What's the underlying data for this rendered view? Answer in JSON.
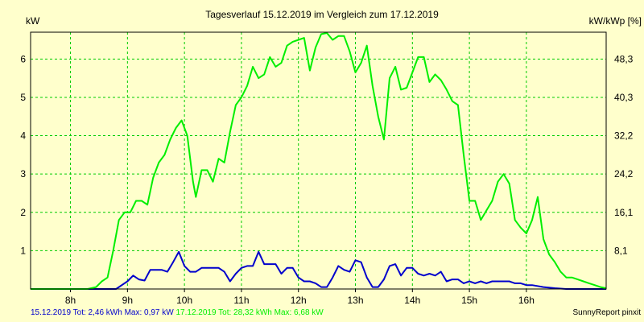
{
  "chart_data": {
    "type": "line",
    "title": "Tagesverlauf 15.12.2019 im Vergleich zum 17.12.2019",
    "ylabel_left": "kW",
    "ylabel_right": "kW/kWp [%]",
    "x_ticks": [
      "8h",
      "9h",
      "10h",
      "11h",
      "12h",
      "13h",
      "14h",
      "15h",
      "16h"
    ],
    "y_ticks_left": [
      "1",
      "2",
      "3",
      "4",
      "5",
      "6"
    ],
    "y_ticks_right": [
      "8,1",
      "16,1",
      "24,2",
      "32,2",
      "40,3",
      "48,3"
    ],
    "xlim": [
      7.3,
      17.4
    ],
    "ylim": [
      0,
      6.7
    ],
    "grid": true,
    "grid_color": "#00CC00",
    "background": "#FFFFCC",
    "series": [
      {
        "name": "15.12.2019",
        "color": "#0000CC",
        "points": [
          [
            7.3,
            0
          ],
          [
            8.4,
            0
          ],
          [
            8.8,
            0
          ],
          [
            8.9,
            0.1
          ],
          [
            9.0,
            0.2
          ],
          [
            9.1,
            0.35
          ],
          [
            9.2,
            0.25
          ],
          [
            9.3,
            0.22
          ],
          [
            9.4,
            0.5
          ],
          [
            9.5,
            0.5
          ],
          [
            9.6,
            0.5
          ],
          [
            9.7,
            0.45
          ],
          [
            9.8,
            0.7
          ],
          [
            9.9,
            0.97
          ],
          [
            10.0,
            0.6
          ],
          [
            10.1,
            0.45
          ],
          [
            10.2,
            0.45
          ],
          [
            10.3,
            0.55
          ],
          [
            10.4,
            0.55
          ],
          [
            10.5,
            0.55
          ],
          [
            10.6,
            0.55
          ],
          [
            10.7,
            0.45
          ],
          [
            10.8,
            0.2
          ],
          [
            10.9,
            0.4
          ],
          [
            11.0,
            0.55
          ],
          [
            11.1,
            0.6
          ],
          [
            11.2,
            0.6
          ],
          [
            11.3,
            0.97
          ],
          [
            11.4,
            0.65
          ],
          [
            11.5,
            0.65
          ],
          [
            11.6,
            0.65
          ],
          [
            11.7,
            0.4
          ],
          [
            11.8,
            0.55
          ],
          [
            11.9,
            0.55
          ],
          [
            12.0,
            0.3
          ],
          [
            12.1,
            0.2
          ],
          [
            12.2,
            0.2
          ],
          [
            12.3,
            0.15
          ],
          [
            12.4,
            0.05
          ],
          [
            12.5,
            0.05
          ],
          [
            12.6,
            0.3
          ],
          [
            12.7,
            0.6
          ],
          [
            12.8,
            0.5
          ],
          [
            12.9,
            0.45
          ],
          [
            13.0,
            0.75
          ],
          [
            13.1,
            0.7
          ],
          [
            13.2,
            0.3
          ],
          [
            13.3,
            0.05
          ],
          [
            13.4,
            0.05
          ],
          [
            13.5,
            0.25
          ],
          [
            13.6,
            0.6
          ],
          [
            13.7,
            0.65
          ],
          [
            13.8,
            0.35
          ],
          [
            13.9,
            0.55
          ],
          [
            14.0,
            0.55
          ],
          [
            14.1,
            0.4
          ],
          [
            14.2,
            0.35
          ],
          [
            14.3,
            0.4
          ],
          [
            14.4,
            0.35
          ],
          [
            14.5,
            0.45
          ],
          [
            14.6,
            0.2
          ],
          [
            14.7,
            0.25
          ],
          [
            14.8,
            0.25
          ],
          [
            14.9,
            0.15
          ],
          [
            15.0,
            0.2
          ],
          [
            15.1,
            0.15
          ],
          [
            15.2,
            0.2
          ],
          [
            15.3,
            0.15
          ],
          [
            15.4,
            0.2
          ],
          [
            15.5,
            0.2
          ],
          [
            15.6,
            0.2
          ],
          [
            15.7,
            0.2
          ],
          [
            15.8,
            0.15
          ],
          [
            15.9,
            0.15
          ],
          [
            16.0,
            0.1
          ],
          [
            16.1,
            0.1
          ],
          [
            16.3,
            0.05
          ],
          [
            16.5,
            0.02
          ],
          [
            16.7,
            0
          ],
          [
            17.4,
            0
          ]
        ]
      },
      {
        "name": "17.12.2019",
        "color": "#00EE00",
        "points": [
          [
            7.3,
            0
          ],
          [
            8.3,
            0
          ],
          [
            8.45,
            0.05
          ],
          [
            8.55,
            0.2
          ],
          [
            8.65,
            0.3
          ],
          [
            8.75,
            1.0
          ],
          [
            8.85,
            1.8
          ],
          [
            8.95,
            2.0
          ],
          [
            9.05,
            2.0
          ],
          [
            9.15,
            2.3
          ],
          [
            9.25,
            2.3
          ],
          [
            9.35,
            2.2
          ],
          [
            9.45,
            2.9
          ],
          [
            9.55,
            3.3
          ],
          [
            9.65,
            3.5
          ],
          [
            9.75,
            3.9
          ],
          [
            9.85,
            4.2
          ],
          [
            9.95,
            4.4
          ],
          [
            10.05,
            4.0
          ],
          [
            10.15,
            2.8
          ],
          [
            10.2,
            2.4
          ],
          [
            10.3,
            3.1
          ],
          [
            10.4,
            3.1
          ],
          [
            10.5,
            2.8
          ],
          [
            10.6,
            3.4
          ],
          [
            10.7,
            3.3
          ],
          [
            10.8,
            4.1
          ],
          [
            10.9,
            4.8
          ],
          [
            11.0,
            5.0
          ],
          [
            11.1,
            5.3
          ],
          [
            11.2,
            5.8
          ],
          [
            11.3,
            5.5
          ],
          [
            11.4,
            5.6
          ],
          [
            11.5,
            6.05
          ],
          [
            11.6,
            5.8
          ],
          [
            11.7,
            5.9
          ],
          [
            11.8,
            6.35
          ],
          [
            11.9,
            6.45
          ],
          [
            12.0,
            6.5
          ],
          [
            12.1,
            6.55
          ],
          [
            12.2,
            5.7
          ],
          [
            12.3,
            6.3
          ],
          [
            12.4,
            6.65
          ],
          [
            12.5,
            6.68
          ],
          [
            12.6,
            6.5
          ],
          [
            12.7,
            6.6
          ],
          [
            12.8,
            6.6
          ],
          [
            12.9,
            6.2
          ],
          [
            13.0,
            5.65
          ],
          [
            13.1,
            5.9
          ],
          [
            13.2,
            6.35
          ],
          [
            13.3,
            5.3
          ],
          [
            13.4,
            4.5
          ],
          [
            13.5,
            3.9
          ],
          [
            13.6,
            5.5
          ],
          [
            13.7,
            5.8
          ],
          [
            13.8,
            5.2
          ],
          [
            13.9,
            5.25
          ],
          [
            14.0,
            5.65
          ],
          [
            14.1,
            6.05
          ],
          [
            14.2,
            6.05
          ],
          [
            14.3,
            5.4
          ],
          [
            14.4,
            5.6
          ],
          [
            14.5,
            5.45
          ],
          [
            14.6,
            5.2
          ],
          [
            14.7,
            4.9
          ],
          [
            14.8,
            4.8
          ],
          [
            14.9,
            3.5
          ],
          [
            15.0,
            2.3
          ],
          [
            15.1,
            2.3
          ],
          [
            15.2,
            1.8
          ],
          [
            15.3,
            2.05
          ],
          [
            15.4,
            2.3
          ],
          [
            15.5,
            2.8
          ],
          [
            15.6,
            3.0
          ],
          [
            15.7,
            2.75
          ],
          [
            15.8,
            1.8
          ],
          [
            15.9,
            1.6
          ],
          [
            16.0,
            1.45
          ],
          [
            16.1,
            1.8
          ],
          [
            16.2,
            2.4
          ],
          [
            16.3,
            1.3
          ],
          [
            16.4,
            0.9
          ],
          [
            16.5,
            0.7
          ],
          [
            16.6,
            0.45
          ],
          [
            16.7,
            0.3
          ],
          [
            16.8,
            0.3
          ],
          [
            16.9,
            0.25
          ],
          [
            17.0,
            0.2
          ],
          [
            17.1,
            0.15
          ],
          [
            17.2,
            0.1
          ],
          [
            17.3,
            0.05
          ],
          [
            17.4,
            0.02
          ]
        ]
      }
    ]
  },
  "footer": {
    "day1_text": "15.12.2019 Tot: 2,46 kWh Max: 0,97 kW",
    "day1_color": "#0000CC",
    "day2_text": "17.12.2019 Tot: 28,32 kWh Max: 6,68 kW",
    "day2_color": "#00EE00",
    "credit": "SunnyReport pinxit"
  }
}
